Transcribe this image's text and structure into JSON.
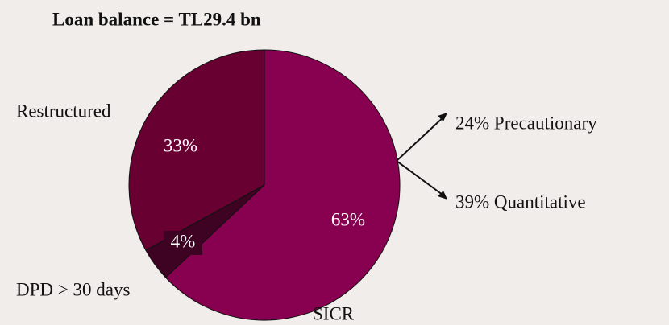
{
  "chart_data": {
    "type": "pie",
    "title": "Loan balance = TL29.4 bn",
    "categories": [
      "SICR",
      "DPD > 30 days",
      "Restructured"
    ],
    "values": [
      63,
      4,
      33
    ],
    "value_labels": [
      "63%",
      "4%",
      "33%"
    ],
    "colors": [
      "#880050",
      "#3e0322",
      "#680032"
    ],
    "annotations": [
      "24% Precautionary",
      "39% Quantitative"
    ]
  }
}
